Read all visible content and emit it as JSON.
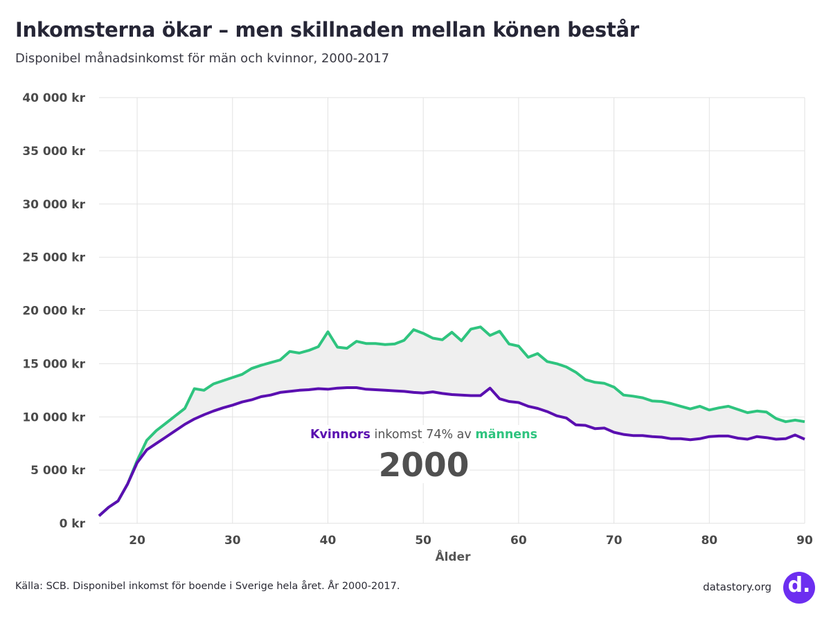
{
  "header": {
    "title": "Inkomsterna ökar – men skillnaden mellan könen består",
    "subtitle": "Disponibel månadsinkomst för män och kvinnor, 2000-2017"
  },
  "footer": {
    "source": "Källa: SCB. Disponibel inkomst för boende i Sverige hela året. År 2000-2017.",
    "site": "datastory.org",
    "logo_text": "d."
  },
  "annotation": {
    "women_word": "Kvinnors",
    "middle_text": " inkomst 74% av ",
    "men_word": "männens",
    "year": "2000"
  },
  "colors": {
    "women": "#5a0fb0",
    "men": "#2fc47f",
    "gap_fill": "#efefef",
    "year_text": "#505050",
    "logo": "#6c2ef0"
  },
  "chart_data": {
    "type": "line",
    "xlabel": "Ålder",
    "ylabel": "",
    "xlim": [
      16,
      90
    ],
    "ylim": [
      0,
      40000
    ],
    "x_ticks": [
      20,
      30,
      40,
      50,
      60,
      70,
      80,
      90
    ],
    "y_ticks": [
      0,
      5000,
      10000,
      15000,
      20000,
      25000,
      30000,
      35000,
      40000
    ],
    "y_tick_labels": [
      "0 kr",
      "5 000 kr",
      "10 000 kr",
      "15 000 kr",
      "20 000 kr",
      "25 000 kr",
      "30 000 kr",
      "35 000 kr",
      "40 000 kr"
    ],
    "grid": true,
    "x": [
      16,
      17,
      18,
      19,
      20,
      21,
      22,
      23,
      24,
      25,
      26,
      27,
      28,
      29,
      30,
      31,
      32,
      33,
      34,
      35,
      36,
      37,
      38,
      39,
      40,
      41,
      42,
      43,
      44,
      45,
      46,
      47,
      48,
      49,
      50,
      51,
      52,
      53,
      54,
      55,
      56,
      57,
      58,
      59,
      60,
      61,
      62,
      63,
      64,
      65,
      66,
      67,
      68,
      69,
      70,
      71,
      72,
      73,
      74,
      75,
      76,
      77,
      78,
      79,
      80,
      81,
      82,
      83,
      84,
      85,
      86,
      87,
      88,
      89,
      90
    ],
    "series": [
      {
        "name": "männens",
        "color": "#2fc47f",
        "values": [
          700,
          1500,
          2100,
          3700,
          5900,
          7800,
          8700,
          9400,
          10100,
          10800,
          12650,
          12500,
          13100,
          13400,
          13700,
          14000,
          14550,
          14850,
          15100,
          15350,
          16150,
          16000,
          16250,
          16600,
          18000,
          16550,
          16450,
          17100,
          16900,
          16900,
          16800,
          16850,
          17200,
          18200,
          17850,
          17400,
          17250,
          17950,
          17150,
          18250,
          18450,
          17650,
          18050,
          16850,
          16650,
          15600,
          15950,
          15200,
          15000,
          14700,
          14200,
          13500,
          13250,
          13150,
          12800,
          12050,
          11950,
          11800,
          11500,
          11450,
          11250,
          11000,
          10750,
          11000,
          10650,
          10850,
          11000,
          10700,
          10400,
          10550,
          10450,
          9850,
          9550,
          9700,
          9550
        ]
      },
      {
        "name": "Kvinnors",
        "color": "#5a0fb0",
        "values": [
          700,
          1500,
          2100,
          3700,
          5700,
          6900,
          7500,
          8100,
          8700,
          9300,
          9800,
          10200,
          10550,
          10850,
          11100,
          11400,
          11600,
          11900,
          12050,
          12300,
          12400,
          12500,
          12550,
          12650,
          12600,
          12700,
          12750,
          12750,
          12600,
          12550,
          12500,
          12450,
          12400,
          12300,
          12250,
          12350,
          12200,
          12100,
          12050,
          12000,
          12000,
          12700,
          11700,
          11450,
          11350,
          11000,
          10800,
          10500,
          10100,
          9900,
          9250,
          9200,
          8900,
          8950,
          8550,
          8350,
          8250,
          8250,
          8150,
          8100,
          7950,
          7950,
          7850,
          7950,
          8150,
          8200,
          8200,
          8000,
          7900,
          8150,
          8050,
          7900,
          7950,
          8300,
          7900
        ]
      }
    ]
  }
}
